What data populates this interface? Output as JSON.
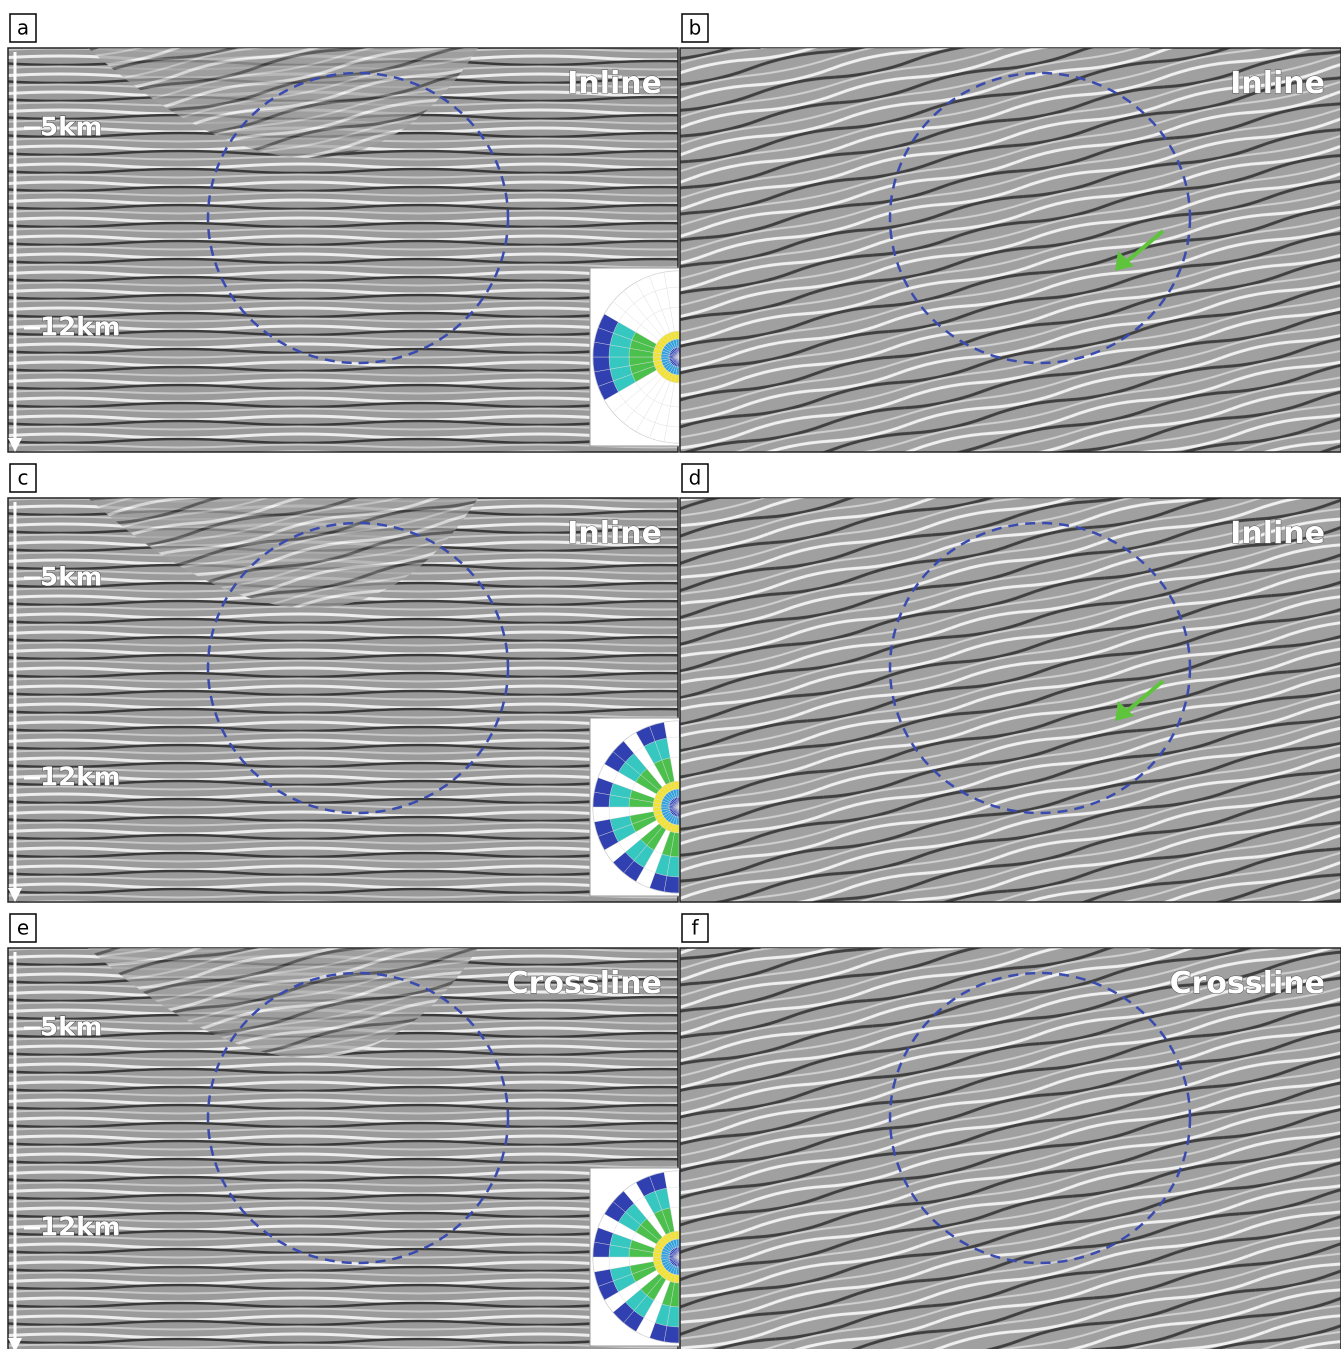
{
  "panels": [
    {
      "label": "a",
      "section": "Inline",
      "depth_labels": [
        "5km",
        "12km"
      ]
    },
    {
      "label": "b",
      "section": "Inline"
    },
    {
      "label": "c",
      "section": "Inline",
      "depth_labels": [
        "5km",
        "12km"
      ]
    },
    {
      "label": "d",
      "section": "Inline"
    },
    {
      "label": "e",
      "section": "Crossline",
      "depth_labels": [
        "5km",
        "12km"
      ]
    },
    {
      "label": "f",
      "section": "Crossline"
    }
  ]
}
